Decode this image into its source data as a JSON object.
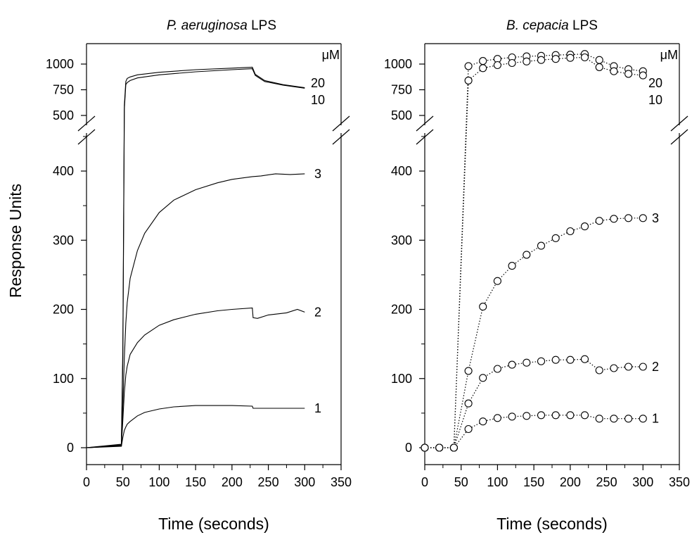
{
  "figure": {
    "ylabel": "Response Units",
    "xlabel": "Time (seconds)",
    "unit_label": "μM"
  },
  "chart_data": [
    {
      "type": "line",
      "title": {
        "italic": "P. aeruginosa",
        "rest": " LPS"
      },
      "xlabel": "Time (seconds)",
      "ylabel": "Response Units",
      "xlim": [
        0,
        350
      ],
      "x_ticks": [
        "0",
        "50",
        "100",
        "150",
        "200",
        "250",
        "300",
        "350"
      ],
      "y_ticks_lower": [
        "0",
        "100",
        "200",
        "300",
        "400"
      ],
      "y_ticks_upper": [
        "500",
        "750",
        "1000"
      ],
      "axis_break": [
        460,
        480
      ],
      "unit_label": "μM",
      "series": [
        {
          "name": "20",
          "x": [
            0,
            48,
            50,
            52,
            54,
            56,
            60,
            70,
            100,
            150,
            200,
            228,
            232,
            245,
            270,
            300
          ],
          "y": [
            0,
            5,
            150,
            600,
            830,
            860,
            875,
            895,
            920,
            945,
            960,
            970,
            900,
            840,
            800,
            770
          ]
        },
        {
          "name": "10",
          "x": [
            0,
            48,
            50,
            52,
            54,
            56,
            60,
            70,
            100,
            150,
            200,
            228,
            232,
            245,
            270,
            300
          ],
          "y": [
            0,
            4,
            130,
            560,
            800,
            820,
            840,
            865,
            895,
            925,
            945,
            955,
            890,
            830,
            795,
            765
          ]
        },
        {
          "name": "3",
          "x": [
            0,
            48,
            50,
            52,
            54,
            56,
            60,
            70,
            80,
            100,
            120,
            150,
            180,
            200,
            228,
            240,
            260,
            280,
            300
          ],
          "y": [
            0,
            3,
            60,
            130,
            180,
            210,
            245,
            285,
            310,
            340,
            358,
            373,
            383,
            388,
            392,
            393,
            396,
            395,
            396
          ]
        },
        {
          "name": "2",
          "x": [
            0,
            48,
            50,
            52,
            54,
            56,
            60,
            70,
            80,
            100,
            120,
            150,
            180,
            200,
            228,
            229,
            235,
            250,
            275,
            290,
            300
          ],
          "y": [
            0,
            3,
            40,
            80,
            105,
            118,
            135,
            152,
            163,
            177,
            185,
            193,
            198,
            200,
            202,
            188,
            187,
            192,
            195,
            200,
            196
          ]
        },
        {
          "name": "1",
          "x": [
            0,
            48,
            50,
            52,
            54,
            56,
            60,
            70,
            80,
            100,
            120,
            150,
            200,
            228,
            229,
            300
          ],
          "y": [
            0,
            2,
            15,
            25,
            30,
            34,
            38,
            46,
            51,
            56,
            59,
            61,
            61,
            60,
            57,
            57
          ]
        }
      ]
    },
    {
      "type": "scatter",
      "title": {
        "italic": "B. cepacia",
        "rest": " LPS"
      },
      "xlabel": "Time (seconds)",
      "ylabel": "",
      "xlim": [
        0,
        350
      ],
      "x_ticks": [
        "0",
        "50",
        "100",
        "150",
        "200",
        "250",
        "300",
        "350"
      ],
      "y_ticks_lower": [
        "0",
        "100",
        "200",
        "300",
        "400"
      ],
      "y_ticks_upper": [
        "500",
        "750",
        "1000"
      ],
      "axis_break": [
        460,
        480
      ],
      "unit_label": "μM",
      "series": [
        {
          "name": "20",
          "x": [
            0,
            20,
            40,
            60,
            80,
            100,
            120,
            140,
            160,
            180,
            200,
            220,
            240,
            260,
            280,
            300
          ],
          "y": [
            0,
            0,
            0,
            980,
            1030,
            1050,
            1065,
            1075,
            1080,
            1088,
            1092,
            1098,
            1040,
            980,
            950,
            930
          ]
        },
        {
          "name": "10",
          "x": [
            0,
            20,
            40,
            60,
            80,
            100,
            120,
            140,
            160,
            180,
            200,
            220,
            240,
            260,
            280,
            300
          ],
          "y": [
            0,
            0,
            0,
            840,
            960,
            990,
            1010,
            1025,
            1040,
            1050,
            1060,
            1065,
            970,
            930,
            905,
            890
          ]
        },
        {
          "name": "3",
          "x": [
            0,
            20,
            40,
            60,
            80,
            100,
            120,
            140,
            160,
            180,
            200,
            220,
            240,
            260,
            280,
            300
          ],
          "y": [
            0,
            0,
            0,
            111,
            204,
            241,
            263,
            279,
            292,
            303,
            313,
            320,
            328,
            331,
            332,
            332
          ]
        },
        {
          "name": "2",
          "x": [
            0,
            20,
            40,
            60,
            80,
            100,
            120,
            140,
            160,
            180,
            200,
            220,
            240,
            260,
            280,
            300
          ],
          "y": [
            0,
            0,
            0,
            64,
            101,
            114,
            120,
            123,
            125,
            127,
            127,
            128,
            112,
            115,
            117,
            117
          ]
        },
        {
          "name": "1",
          "x": [
            0,
            20,
            40,
            60,
            80,
            100,
            120,
            140,
            160,
            180,
            200,
            220,
            240,
            260,
            280,
            300
          ],
          "y": [
            0,
            0,
            0,
            27,
            38,
            43,
            45,
            46,
            47,
            47,
            47,
            47,
            42,
            42,
            42,
            42
          ]
        }
      ]
    }
  ]
}
